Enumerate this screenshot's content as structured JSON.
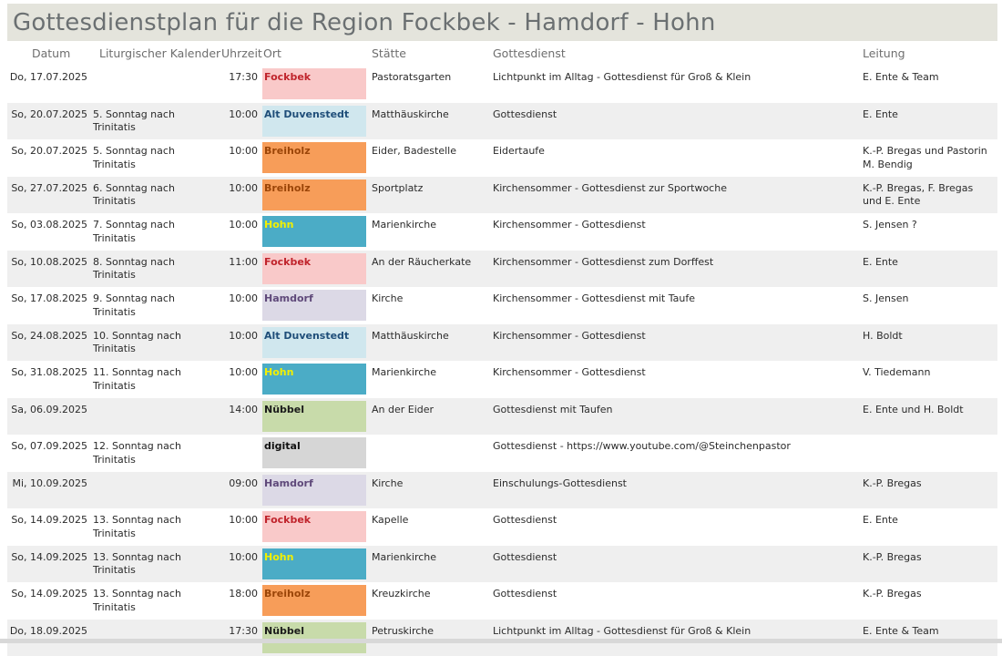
{
  "title": "Gottesdienstplan für die Region Fockbek - Hamdorf - Hohn",
  "headers": {
    "datum": "Datum",
    "kalender": "Liturgischer Kalender",
    "uhrzeit": "Uhrzeit",
    "ort": "Ort",
    "staette": "Stätte",
    "gottesdienst": "Gottesdienst",
    "leitung": "Leitung"
  },
  "ort_colors": {
    "Fockbek": {
      "bg": "#f9c9c9",
      "fg": "#c0242c"
    },
    "Alt Duvenstedt": {
      "bg": "#d0e7ee",
      "fg": "#1f4e79"
    },
    "Breiholz": {
      "bg": "#f79d59",
      "fg": "#9b4508"
    },
    "Hohn": {
      "bg": "#4bacc6",
      "fg": "#f3f000"
    },
    "Hamdorf": {
      "bg": "#dcd9e6",
      "fg": "#5f497a"
    },
    "Nübbel": {
      "bg": "#c8dbaa",
      "fg": "#1a1a1a"
    },
    "digital": {
      "bg": "#d6d6d6",
      "fg": "#111111"
    }
  },
  "rows": [
    {
      "datum": "Do, 17.07.2025",
      "kalender": "",
      "uhrzeit": "17:30",
      "ort": "Fockbek",
      "staette": "Pastoratsgarten",
      "gottesdienst": "Lichtpunkt im Alltag - Gottesdienst für Groß & Klein",
      "leitung": "E. Ente & Team"
    },
    {
      "datum": "So, 20.07.2025",
      "kalender": "5. Sonntag nach Trinitatis",
      "uhrzeit": "10:00",
      "ort": "Alt Duvenstedt",
      "staette": "Matthäuskirche",
      "gottesdienst": "Gottesdienst",
      "leitung": "E. Ente"
    },
    {
      "datum": "So, 20.07.2025",
      "kalender": "5. Sonntag nach Trinitatis",
      "uhrzeit": "10:00",
      "ort": "Breiholz",
      "staette": "Eider, Badestelle",
      "gottesdienst": "Eidertaufe",
      "leitung": "K.-P. Bregas und Pastorin M. Bendig"
    },
    {
      "datum": "So, 27.07.2025",
      "kalender": "6. Sonntag nach Trinitatis",
      "uhrzeit": "10:00",
      "ort": "Breiholz",
      "staette": "Sportplatz",
      "gottesdienst": "Kirchensommer - Gottesdienst zur Sportwoche",
      "leitung": "K.-P. Bregas, F. Bregas und E. Ente"
    },
    {
      "datum": "So, 03.08.2025",
      "kalender": "7. Sonntag nach Trinitatis",
      "uhrzeit": "10:00",
      "ort": "Hohn",
      "staette": "Marienkirche",
      "gottesdienst": "Kirchensommer - Gottesdienst",
      "leitung": "S. Jensen ?"
    },
    {
      "datum": "So, 10.08.2025",
      "kalender": "8. Sonntag nach Trinitatis",
      "uhrzeit": "11:00",
      "ort": "Fockbek",
      "staette": "An der Räucherkate",
      "gottesdienst": "Kirchensommer - Gottesdienst zum Dorffest",
      "leitung": "E. Ente"
    },
    {
      "datum": "So, 17.08.2025",
      "kalender": "9. Sonntag nach Trinitatis",
      "uhrzeit": "10:00",
      "ort": "Hamdorf",
      "staette": "Kirche",
      "gottesdienst": "Kirchensommer - Gottesdienst mit Taufe",
      "leitung": "S. Jensen"
    },
    {
      "datum": "So, 24.08.2025",
      "kalender": "10. Sonntag nach Trinitatis",
      "uhrzeit": "10:00",
      "ort": "Alt Duvenstedt",
      "staette": "Matthäuskirche",
      "gottesdienst": "Kirchensommer - Gottesdienst",
      "leitung": "H. Boldt"
    },
    {
      "datum": "So, 31.08.2025",
      "kalender": "11. Sonntag nach Trinitatis",
      "uhrzeit": "10:00",
      "ort": "Hohn",
      "staette": "Marienkirche",
      "gottesdienst": "Kirchensommer - Gottesdienst",
      "leitung": "V. Tiedemann"
    },
    {
      "datum": "Sa, 06.09.2025",
      "kalender": "",
      "uhrzeit": "14:00",
      "ort": "Nübbel",
      "staette": "An der Eider",
      "gottesdienst": "Gottesdienst mit Taufen",
      "leitung": "E. Ente und H. Boldt"
    },
    {
      "datum": "So, 07.09.2025",
      "kalender": "12. Sonntag nach Trinitatis",
      "uhrzeit": "",
      "ort": "digital",
      "staette": "",
      "gottesdienst": "Gottesdienst - https://www.youtube.com/@Steinchenpastor",
      "leitung": ""
    },
    {
      "datum": "Mi, 10.09.2025",
      "kalender": "",
      "uhrzeit": "09:00",
      "ort": "Hamdorf",
      "staette": "Kirche",
      "gottesdienst": "Einschulungs-Gottesdienst",
      "leitung": "K.-P. Bregas"
    },
    {
      "datum": "So, 14.09.2025",
      "kalender": "13. Sonntag nach Trinitatis",
      "uhrzeit": "10:00",
      "ort": "Fockbek",
      "staette": "Kapelle",
      "gottesdienst": "Gottesdienst",
      "leitung": "E. Ente"
    },
    {
      "datum": "So, 14.09.2025",
      "kalender": "13. Sonntag nach Trinitatis",
      "uhrzeit": "10:00",
      "ort": "Hohn",
      "staette": "Marienkirche",
      "gottesdienst": "Gottesdienst",
      "leitung": "K.-P. Bregas"
    },
    {
      "datum": "So, 14.09.2025",
      "kalender": "13. Sonntag nach Trinitatis",
      "uhrzeit": "18:00",
      "ort": "Breiholz",
      "staette": "Kreuzkirche",
      "gottesdienst": "Gottesdienst",
      "leitung": "K.-P. Bregas"
    },
    {
      "datum": "Do, 18.09.2025",
      "kalender": "",
      "uhrzeit": "17:30",
      "ort": "Nübbel",
      "staette": "Petruskirche",
      "gottesdienst": "Lichtpunkt im Alltag - Gottesdienst für Groß & Klein",
      "leitung": "E. Ente & Team"
    }
  ]
}
